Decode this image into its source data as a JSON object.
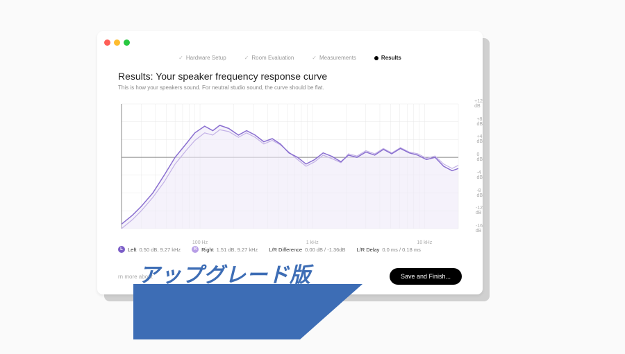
{
  "window": {
    "steps": [
      {
        "label": "Hardware Setup",
        "done": true
      },
      {
        "label": "Room Evaluation",
        "done": true
      },
      {
        "label": "Measurements",
        "done": true
      },
      {
        "label": "Results",
        "active": true
      }
    ]
  },
  "heading": "Results: Your speaker frequency response curve",
  "subheading": "This is how your speakers sound. For neutral studio sound, the curve should be flat.",
  "chart": {
    "type": "line",
    "x_scale": "log",
    "y_scale": "linear",
    "ylim": [
      -16,
      12
    ],
    "ytick_step": 4,
    "y_ticks": [
      12,
      8,
      4,
      0,
      -4,
      -8,
      -12,
      -16
    ],
    "y_tick_labels": [
      "+12 dB",
      "+8 dB",
      "+4 dB",
      "0 dB",
      "-4 dB",
      "-8 dB",
      "-12 dB",
      "-16 dB"
    ],
    "x_ticks_hz": [
      100,
      1000,
      10000
    ],
    "x_tick_labels": [
      "100 Hz",
      "1 kHz",
      "10 kHz"
    ],
    "grid_color": "#e8e8e8",
    "axis_color": "#888888",
    "background_color": "#ffffff",
    "series": [
      {
        "name": "Left",
        "color": "#8a6fd0",
        "width": 1.5,
        "fill_color": "#efe9f9",
        "points": [
          [
            20,
            -15
          ],
          [
            25,
            -13
          ],
          [
            30,
            -11
          ],
          [
            38,
            -8
          ],
          [
            48,
            -4
          ],
          [
            60,
            0
          ],
          [
            75,
            3
          ],
          [
            90,
            5.5
          ],
          [
            110,
            7
          ],
          [
            130,
            6
          ],
          [
            150,
            7.2
          ],
          [
            180,
            6.5
          ],
          [
            220,
            5
          ],
          [
            260,
            6
          ],
          [
            310,
            5
          ],
          [
            370,
            3.5
          ],
          [
            440,
            4.2
          ],
          [
            520,
            3
          ],
          [
            620,
            1
          ],
          [
            740,
            0
          ],
          [
            880,
            -1.5
          ],
          [
            1050,
            -0.5
          ],
          [
            1250,
            1
          ],
          [
            1500,
            0.2
          ],
          [
            1800,
            -1
          ],
          [
            2100,
            0.5
          ],
          [
            2500,
            0
          ],
          [
            3000,
            1.2
          ],
          [
            3600,
            0.5
          ],
          [
            4300,
            1.8
          ],
          [
            5100,
            0.8
          ],
          [
            6100,
            2
          ],
          [
            7300,
            1
          ],
          [
            8700,
            0.5
          ],
          [
            10400,
            -0.5
          ],
          [
            12400,
            0
          ],
          [
            14800,
            -2
          ],
          [
            17600,
            -3
          ],
          [
            20000,
            -2.5
          ]
        ]
      },
      {
        "name": "Right",
        "color": "#c3b2e6",
        "width": 1.2,
        "points": [
          [
            20,
            -16
          ],
          [
            25,
            -14
          ],
          [
            30,
            -12
          ],
          [
            38,
            -9
          ],
          [
            48,
            -5.5
          ],
          [
            60,
            -1.5
          ],
          [
            75,
            1.5
          ],
          [
            90,
            3.8
          ],
          [
            110,
            5.5
          ],
          [
            130,
            5
          ],
          [
            150,
            6.2
          ],
          [
            180,
            5.8
          ],
          [
            220,
            4.5
          ],
          [
            260,
            5.5
          ],
          [
            310,
            4.5
          ],
          [
            370,
            3
          ],
          [
            440,
            3.8
          ],
          [
            520,
            2.8
          ],
          [
            620,
            1.2
          ],
          [
            740,
            -0.5
          ],
          [
            880,
            -2
          ],
          [
            1050,
            -1
          ],
          [
            1250,
            0.5
          ],
          [
            1500,
            -0.3
          ],
          [
            1800,
            -1.2
          ],
          [
            2100,
            0.8
          ],
          [
            2500,
            0.3
          ],
          [
            3000,
            1.5
          ],
          [
            3600,
            0.8
          ],
          [
            4300,
            2
          ],
          [
            5100,
            1
          ],
          [
            6100,
            2.2
          ],
          [
            7300,
            1.2
          ],
          [
            8700,
            0.8
          ],
          [
            10400,
            -0.2
          ],
          [
            12400,
            0.3
          ],
          [
            14800,
            -1.5
          ],
          [
            17600,
            -2.5
          ],
          [
            20000,
            -1.8
          ]
        ]
      }
    ]
  },
  "stats": {
    "left_badge": "L",
    "left_label": "Left",
    "left_value": "0.50 dB, 9.27 kHz",
    "right_badge": "R",
    "right_label": "Right",
    "right_value": "1.51 dB, 9.27 kHz",
    "diff_label": "L/R Difference",
    "diff_value": "0.00 dB / -1.36dB",
    "delay_label": "L/R Delay",
    "delay_value": "0.0 ms / 0.18 ms"
  },
  "footer": {
    "learn_more": "rn more about",
    "save_button": "Save and Finish..."
  },
  "banner": {
    "text": "アップグレード版",
    "bg_color": "#3d6db5",
    "text_color": "#3d6db5"
  }
}
